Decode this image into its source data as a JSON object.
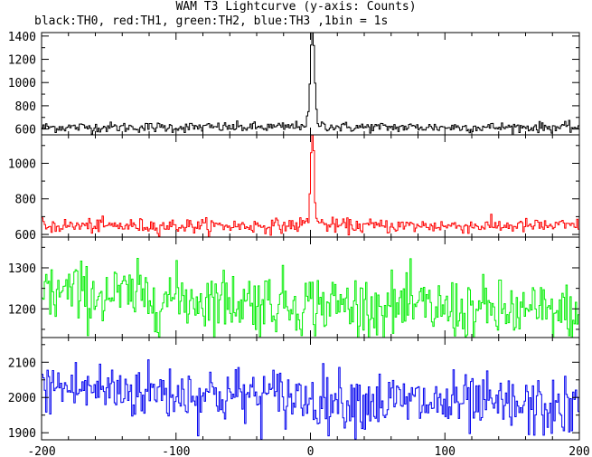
{
  "title": "WAM T3 Lightcurve (y-axis: Counts)",
  "subtitle": "black:TH0, red:TH1, green:TH2, blue:TH3 ,1bin = 1s",
  "chart_data": {
    "type": "line",
    "x_ticks": [
      -200,
      -100,
      0,
      100,
      200
    ],
    "xlim": [
      -200,
      200
    ],
    "panels": [
      {
        "name": "TH0",
        "color": "#000000",
        "ylim": [
          550,
          1430
        ],
        "y_ticks": [
          600,
          800,
          1000,
          1200,
          1400
        ],
        "baseline": 615,
        "noise": 22,
        "trend": 0,
        "peak_height": 830,
        "peak_center": 1,
        "peak_width": 1.4,
        "wing_height": 70,
        "wing_width": 6
      },
      {
        "name": "TH1",
        "color": "#ff0000",
        "ylim": [
          585,
          1160
        ],
        "y_ticks": [
          600,
          800,
          1000
        ],
        "baseline": 648,
        "noise": 20,
        "trend": 0,
        "peak_height": 530,
        "peak_center": 1,
        "peak_width": 1.2,
        "wing_height": 45,
        "wing_width": 5
      },
      {
        "name": "TH2",
        "color": "#00ee00",
        "ylim": [
          1130,
          1375
        ],
        "y_ticks": [
          1200,
          1300
        ],
        "baseline": 1240,
        "noise": 38,
        "trend": -55,
        "peak_height": 0,
        "peak_center": 1,
        "peak_width": 1,
        "wing_height": 0,
        "wing_width": 1
      },
      {
        "name": "TH3",
        "color": "#0000ee",
        "ylim": [
          1880,
          2170
        ],
        "y_ticks": [
          1900,
          2000,
          2100
        ],
        "baseline": 2030,
        "noise": 42,
        "trend": -65,
        "peak_height": 0,
        "peak_center": 1,
        "peak_width": 1,
        "wing_height": 0,
        "wing_width": 1
      }
    ]
  }
}
